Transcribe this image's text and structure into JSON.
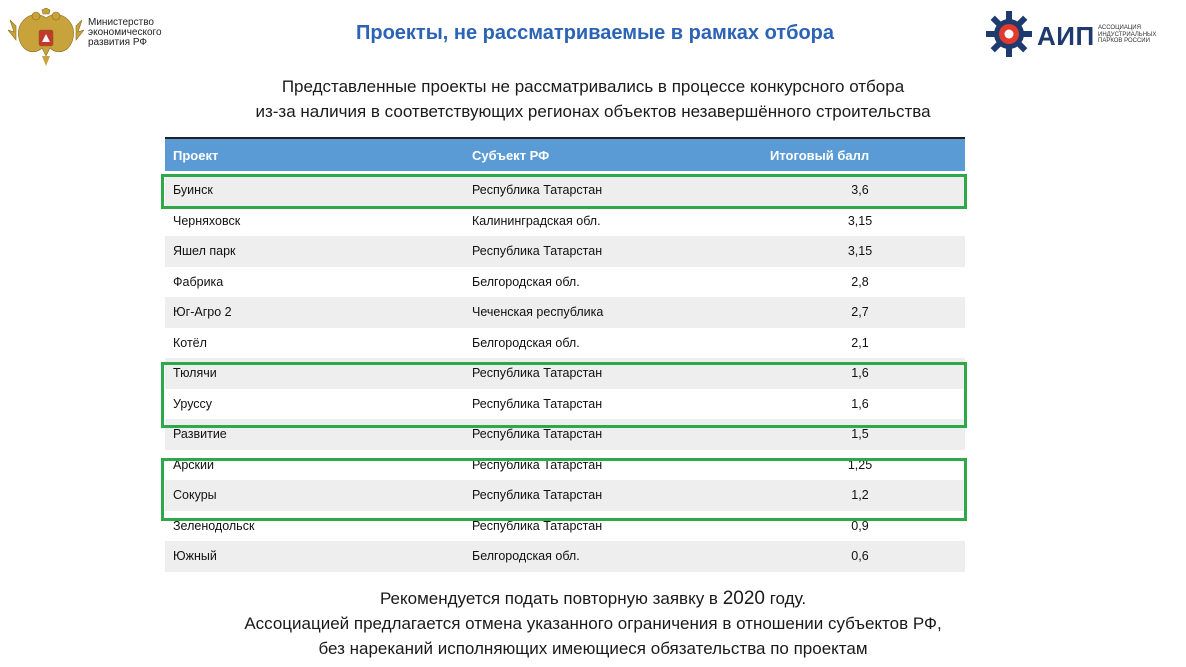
{
  "header": {
    "ministry_lines": [
      "Министерство",
      "экономического",
      "развития РФ"
    ],
    "title": "Проекты, не рассматриваемые в рамках отбора",
    "aip_brand": "АИП",
    "aip_lines": [
      "АССОЦИАЦИЯ",
      "ИНДУСТРИАЛЬНЫХ",
      "ПАРКОВ РОССИИ"
    ]
  },
  "intro": [
    "Представленные проекты не рассматривались в процессе конкурсного отбора",
    "из-за наличия в соответствующих регионах объектов незавершённого строительства"
  ],
  "table": {
    "columns": [
      "Проект",
      "Субъект РФ",
      "Итоговый балл"
    ],
    "rows": [
      {
        "project": "Буинск",
        "region": "Республика Татарстан",
        "score": "3,6"
      },
      {
        "project": "Черняховск",
        "region": "Калининградская обл.",
        "score": "3,15"
      },
      {
        "project": "Яшел парк",
        "region": "Республика Татарстан",
        "score": "3,15"
      },
      {
        "project": "Фабрика",
        "region": "Белгородская обл.",
        "score": "2,8"
      },
      {
        "project": "Юг-Агро 2",
        "region": "Чеченская республика",
        "score": "2,7"
      },
      {
        "project": "Котёл",
        "region": "Белгородская обл.",
        "score": "2,1"
      },
      {
        "project": "Тюлячи",
        "region": "Республика Татарстан",
        "score": "1,6"
      },
      {
        "project": "Уруссу",
        "region": "Республика Татарстан",
        "score": "1,6"
      },
      {
        "project": "Развитие",
        "region": "Республика Татарстан",
        "score": "1,5"
      },
      {
        "project": "Арский",
        "region": "Республика Татарстан",
        "score": "1,25"
      },
      {
        "project": "Сокуры",
        "region": "Республика Татарстан",
        "score": "1,2"
      },
      {
        "project": "Зеленодольск",
        "region": "Республика Татарстан",
        "score": "0,9"
      },
      {
        "project": "Южный",
        "region": "Белгородская обл.",
        "score": "0,6"
      }
    ]
  },
  "footer": {
    "line1_prefix": "Рекомендуется подать повторную заявку в ",
    "line1_year": "2020",
    "line1_suffix": " году.",
    "line2": "Ассоциацией предлагается отмена указанного ограничения в отношении субъектов РФ,",
    "line3": "без нареканий исполняющих имеющиеся обязательства по проектам"
  },
  "colors": {
    "title": "#2b63b6",
    "table_header": "#5b9bd5",
    "highlight": "#2ea84a",
    "row_shade": "#eeeeee"
  }
}
